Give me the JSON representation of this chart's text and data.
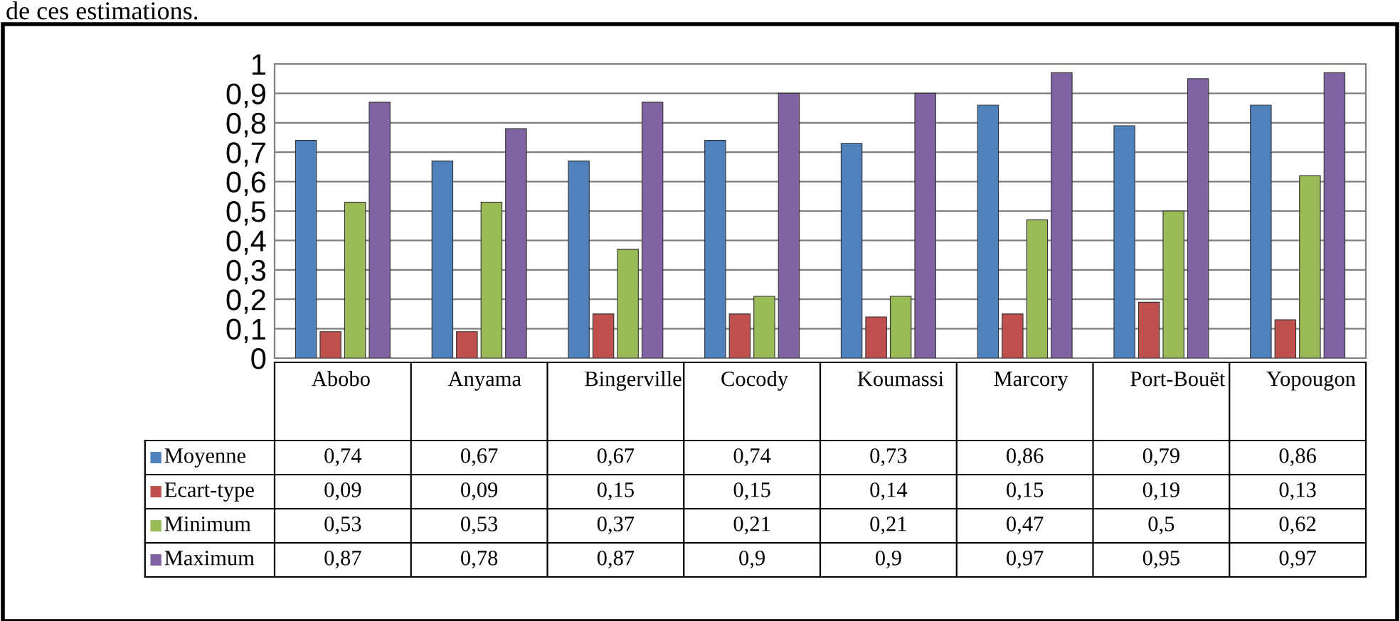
{
  "chart_data": {
    "type": "bar",
    "annotations": [
      "de ces estimations."
    ],
    "categories": [
      "Abobo",
      "Anyama",
      "Bingerville",
      "Cocody",
      "Koumassi",
      "Marcory",
      "Port-Bouët",
      "Yopougon"
    ],
    "series": [
      {
        "name": "Moyenne",
        "color": "#4f81bd",
        "values": [
          0.74,
          0.67,
          0.67,
          0.74,
          0.73,
          0.86,
          0.79,
          0.86
        ],
        "value_labels": [
          "0,74",
          "0,67",
          "0,67",
          "0,74",
          "0,73",
          "0,86",
          "0,79",
          "0,86"
        ]
      },
      {
        "name": "Ecart-type",
        "color": "#c0504d",
        "values": [
          0.09,
          0.09,
          0.15,
          0.15,
          0.14,
          0.15,
          0.19,
          0.13
        ],
        "value_labels": [
          "0,09",
          "0,09",
          "0,15",
          "0,15",
          "0,14",
          "0,15",
          "0,19",
          "0,13"
        ]
      },
      {
        "name": "Minimum",
        "color": "#9bbb59",
        "values": [
          0.53,
          0.53,
          0.37,
          0.21,
          0.21,
          0.47,
          0.5,
          0.62
        ],
        "value_labels": [
          "0,53",
          "0,53",
          "0,37",
          "0,21",
          "0,21",
          "0,47",
          "0,5",
          "0,62"
        ]
      },
      {
        "name": "Maximum",
        "color": "#8064a2",
        "values": [
          0.87,
          0.78,
          0.87,
          0.9,
          0.9,
          0.97,
          0.95,
          0.97
        ],
        "value_labels": [
          "0,87",
          "0,78",
          "0,87",
          "0,9",
          "0,9",
          "0,97",
          "0,95",
          "0,97"
        ]
      }
    ],
    "ylim": [
      0,
      1
    ],
    "yticks": [
      0,
      {
        "value": 0.1,
        "label": "0,1"
      },
      {
        "value": 0.2,
        "label": "0,2"
      },
      {
        "value": 0.3,
        "label": "0,3"
      },
      {
        "value": 0.4,
        "label": "0,4"
      },
      {
        "value": 0.5,
        "label": "0,5"
      },
      {
        "value": 0.6,
        "label": "0,6"
      },
      {
        "value": 0.7,
        "label": "0,7"
      },
      {
        "value": 0.8,
        "label": "0,8"
      },
      {
        "value": 0.9,
        "label": "0,9"
      },
      1
    ],
    "grid": "y",
    "legend": "bottom"
  }
}
